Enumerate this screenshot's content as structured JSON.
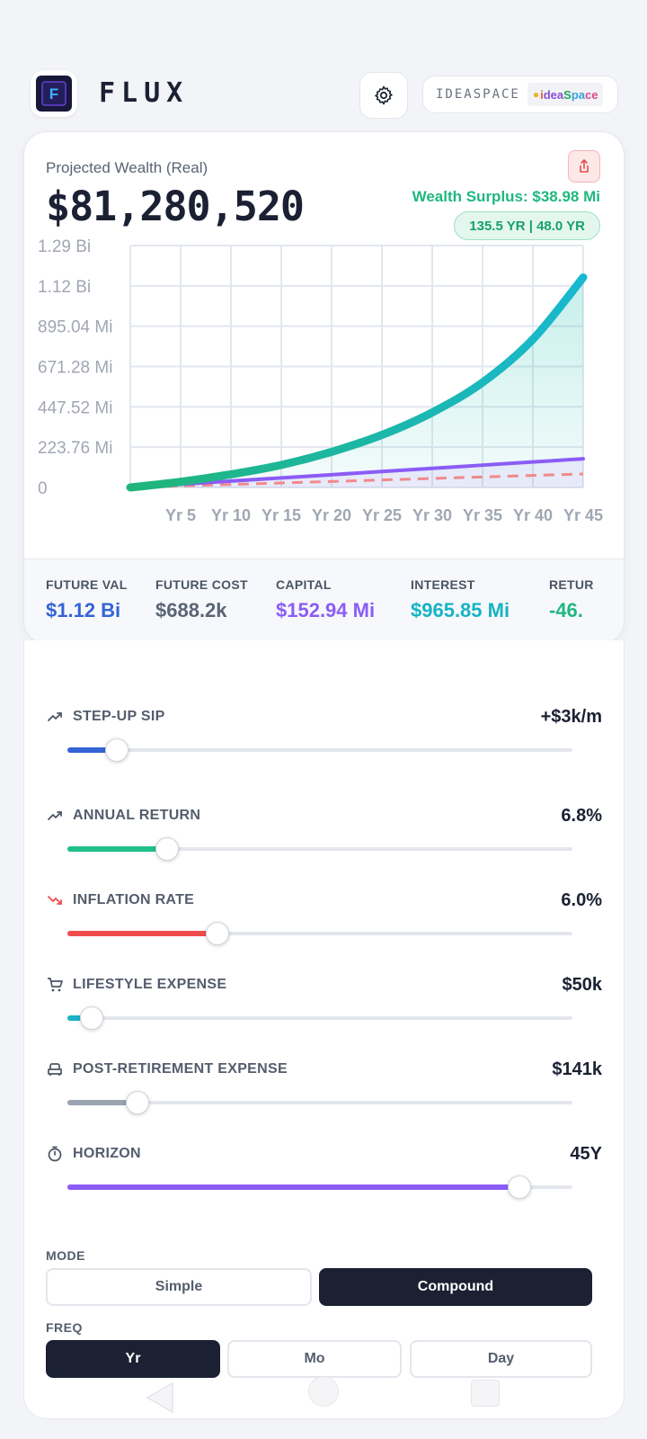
{
  "header": {
    "app_name": "FLUX",
    "logo_letter": "F",
    "brand_text": "IDEASPACE",
    "brand_logo": [
      "i",
      "dea",
      "S",
      "pa",
      "ce"
    ]
  },
  "summary": {
    "label": "Projected Wealth (Real)",
    "value": "$81,280,520",
    "surplus": "Wealth Surplus: $38.98 Mi",
    "years_pill": "135.5 YR | 48.0 YR"
  },
  "chart_data": {
    "type": "area",
    "x": [
      0,
      5,
      10,
      15,
      20,
      25,
      30,
      35,
      40,
      45
    ],
    "x_tick_labels": [
      "Yr 5",
      "Yr 10",
      "Yr 15",
      "Yr 20",
      "Yr 25",
      "Yr 30",
      "Yr 35",
      "Yr 40",
      "Yr 45"
    ],
    "y_tick_labels": [
      "1.29 Bi",
      "1.12 Bi",
      "895.04 Mi",
      "671.28 Mi",
      "447.52 Mi",
      "223.76 Mi",
      "0"
    ],
    "ylim": [
      0,
      1290
    ],
    "y_units": "Mi",
    "series": [
      {
        "values": [
          0,
          30,
          70,
          120,
          190,
          280,
          400,
          560,
          790,
          1120
        ],
        "color": "#1fbfb0"
      },
      {
        "values": [
          0,
          17,
          34,
          51,
          68,
          85,
          102,
          119,
          136,
          153
        ],
        "color": "#8b5cf6"
      },
      {
        "values": [
          0,
          8,
          16,
          24,
          32,
          40,
          48,
          56,
          64,
          72
        ],
        "color": "#f08a8a",
        "dashed": true
      }
    ],
    "grid": true
  },
  "stats": [
    {
      "label": "FUTURE VAL",
      "value": "$1.12 Bi",
      "color": "#3563d6"
    },
    {
      "label": "FUTURE COST",
      "value": "$688.2k",
      "color": "#5b6474"
    },
    {
      "label": "CAPITAL",
      "value": "$152.94 Mi",
      "color": "#8b5cf6"
    },
    {
      "label": "INTEREST",
      "value": "$965.85 Mi",
      "color": "#17b3c4"
    },
    {
      "label": "RETUR",
      "value": "-46.",
      "color": "#1fb780"
    }
  ],
  "sliders": [
    {
      "name": "first",
      "label": "",
      "value": "",
      "icon": "",
      "color": "#3563d6",
      "fraction": 0.148
    },
    {
      "name": "step-up-sip",
      "label": "STEP-UP SIP",
      "value": "+$3k/m",
      "icon": "trending-up-icon",
      "color": "#3563d6",
      "fraction": 0.098
    },
    {
      "name": "annual-return",
      "label": "ANNUAL RETURN",
      "value": "6.8%",
      "icon": "trending-up-icon",
      "color": "#20c08a",
      "fraction": 0.198
    },
    {
      "name": "inflation-rate",
      "label": "INFLATION RATE",
      "value": "6.0%",
      "icon": "trending-down-icon",
      "color": "#ef4b4b",
      "fraction": 0.298
    },
    {
      "name": "lifestyle-expense",
      "label": "LIFESTYLE EXPENSE",
      "value": "$50k",
      "icon": "cart-icon",
      "color": "#17b3c4",
      "fraction": 0.048
    },
    {
      "name": "post-retirement-expense",
      "label": "POST-RETIREMENT EXPENSE",
      "value": "$141k",
      "icon": "armchair-icon",
      "color": "#9aa3b0",
      "fraction": 0.138
    },
    {
      "name": "horizon",
      "label": "HORIZON",
      "value": "45Y",
      "icon": "stopwatch-icon",
      "color": "#8b5cf6",
      "fraction": 0.895
    }
  ],
  "mode": {
    "label": "MODE",
    "options": [
      "Simple",
      "Compound"
    ],
    "selected": "Compound"
  },
  "freq": {
    "label": "FREQ",
    "options": [
      "Yr",
      "Mo",
      "Day"
    ],
    "selected": "Yr"
  }
}
